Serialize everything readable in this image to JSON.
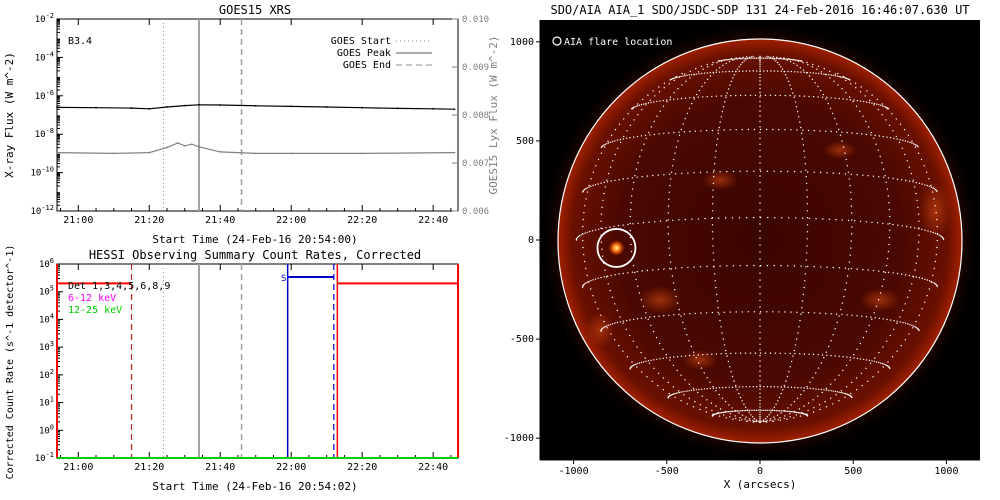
{
  "colors": {
    "goes_long": "#000000",
    "goes_short": "#808080",
    "hessi_red": "#ff0000",
    "hessi_magenta": "#ff00ff",
    "hessi_green": "#00cc00",
    "hessi_blue": "#0000cc",
    "hessi_darkred": "#aa2222",
    "aia_bg": "#000000",
    "aia_limb": "#ffffff"
  },
  "chart_data": [
    {
      "type": "line",
      "title": "GOES15 XRS",
      "xlabel": "Start Time (24-Feb-16 20:54:00)",
      "ylabel": "X-ray Flux (W m^-2)",
      "y2label": "GOES15 Lyx Flux (W m^-2)",
      "ylog": true,
      "ylim": [
        1e-12,
        0.01
      ],
      "y_ticks": [
        "10^-2",
        "10^-4",
        "10^-6",
        "10^-8",
        "10^-10",
        "10^-12"
      ],
      "y2lim": [
        0.006,
        0.01
      ],
      "y2_ticks": [
        "0.010",
        "0.009",
        "0.008",
        "0.007",
        "0.006"
      ],
      "xlim": [
        "20:54",
        "22:47"
      ],
      "x_ticks": [
        "21:00",
        "21:20",
        "21:40",
        "22:00",
        "22:20",
        "22:40"
      ],
      "annotation": "B3.4",
      "legend": {
        "placement": "top-right",
        "entries": [
          "GOES Start",
          "GOES Peak",
          "GOES End"
        ]
      },
      "markers": {
        "start": "21:24",
        "peak": "21:34",
        "end": "21:46"
      },
      "series": [
        {
          "x": [
            "20:54",
            "21:05",
            "21:15",
            "21:20",
            "21:25",
            "21:30",
            "21:34",
            "21:40",
            "21:50",
            "22:00",
            "22:10",
            "22:20",
            "22:30",
            "22:40",
            "22:46"
          ],
          "values": [
            2.5e-07,
            2.4e-07,
            2.3e-07,
            2.1e-07,
            2.6e-07,
            3.1e-07,
            3.4e-07,
            3.3e-07,
            3e-07,
            2.8e-07,
            2.6e-07,
            2.4e-07,
            2.2e-07,
            2.1e-07,
            2e-07
          ]
        },
        {
          "x": [
            "20:54",
            "21:10",
            "21:20",
            "21:25",
            "21:28",
            "21:30",
            "21:32",
            "21:34",
            "21:40",
            "21:50",
            "22:00",
            "22:20",
            "22:46"
          ],
          "values": [
            1.1e-09,
            1e-09,
            1.1e-09,
            2e-09,
            3.5e-09,
            2.5e-09,
            3e-09,
            2.2e-09,
            1.2e-09,
            1e-09,
            1e-09,
            1e-09,
            1.1e-09
          ]
        }
      ]
    },
    {
      "type": "line",
      "title": "HESSI Observing Summary Count Rates, Corrected",
      "xlabel": "Start Time (24-Feb-16 20:54:02)",
      "ylabel": "Corrected Count Rate (s^-1 detector^-1)",
      "ylog": true,
      "ylim": [
        0.1,
        1000000.0
      ],
      "y_ticks": [
        "10^6",
        "10^5",
        "10^4",
        "10^3",
        "10^2",
        "10^1",
        "10^0",
        "10^-1"
      ],
      "xlim": [
        "20:54",
        "22:47"
      ],
      "x_ticks": [
        "21:00",
        "21:20",
        "21:40",
        "22:00",
        "22:20",
        "22:40"
      ],
      "legend": {
        "placement": "top-left",
        "entries": [
          "Det 1,3,4,5,6,8,9",
          "6-12 keV",
          "12-25 keV"
        ]
      },
      "annotation": "S",
      "markers": {
        "goes_start": "21:24",
        "goes_peak": "21:34",
        "goes_end": "21:46",
        "night_end": "21:15",
        "night_start": "22:13",
        "saa_start": "21:59",
        "saa_end": "22:12"
      },
      "series": [
        {
          "segments": [
            [
              "20:54",
              "21:15"
            ],
            [
              "22:13",
              "22:47"
            ]
          ],
          "value": 200000.0
        },
        {
          "segments": [
            [
              "20:54",
              "22:47"
            ]
          ],
          "value": 0.1
        }
      ]
    },
    {
      "type": "image",
      "title": "SDO/AIA AIA_1 SDO/JSDC-SDP 131 24-Feb-2016 16:46:07.630 UT",
      "xlabel": "X (arcsecs)",
      "ylabel": "",
      "xlim": [
        -1180,
        1180
      ],
      "ylim": [
        -1110,
        1110
      ],
      "x_ticks": [
        "-1000",
        "-500",
        "0",
        "500",
        "1000"
      ],
      "y_ticks": [
        "1000",
        "500",
        "0",
        "-500",
        "-1000"
      ],
      "legend": {
        "placement": "top-left",
        "entries": [
          "AIA flare location"
        ]
      },
      "flare_location": [
        -770,
        -40
      ],
      "solar_radius": 985
    }
  ]
}
